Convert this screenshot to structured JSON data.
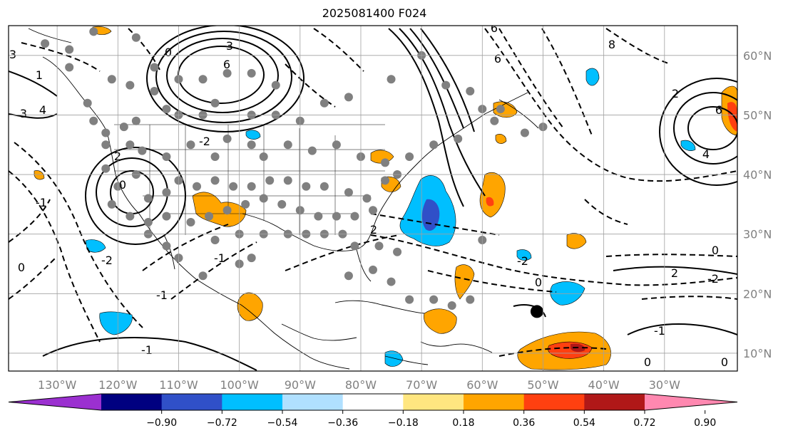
{
  "title": "2025081400 F024",
  "map": {
    "lon_range": [
      -138,
      -18
    ],
    "lat_range": [
      7,
      65
    ],
    "lon_ticks": [
      {
        "value": -130,
        "label": "130°W"
      },
      {
        "value": -120,
        "label": "120°W"
      },
      {
        "value": -110,
        "label": "110°W"
      },
      {
        "value": -100,
        "label": "100°W"
      },
      {
        "value": -90,
        "label": "90°W"
      },
      {
        "value": -80,
        "label": "80°W"
      },
      {
        "value": -70,
        "label": "70°W"
      },
      {
        "value": -60,
        "label": "60°W"
      },
      {
        "value": -50,
        "label": "50°W"
      },
      {
        "value": -40,
        "label": "40°W"
      },
      {
        "value": -30,
        "label": "30°W"
      }
    ],
    "lat_ticks": [
      {
        "value": 60,
        "label": "60°N"
      },
      {
        "value": 50,
        "label": "50°N"
      },
      {
        "value": 40,
        "label": "40°N"
      },
      {
        "value": 30,
        "label": "30°N"
      },
      {
        "value": 20,
        "label": "20°N"
      },
      {
        "value": 10,
        "label": "10°N"
      }
    ],
    "grid": true,
    "black_marker": {
      "lon": -51,
      "lat": 17
    }
  },
  "colorbar": {
    "colors": [
      "#9b30d0",
      "#000080",
      "#3050c8",
      "#00bfff",
      "#b0e0ff",
      "#ffffff",
      "#ffe680",
      "#ffa500",
      "#ff4010",
      "#b01818",
      "#ff88b0"
    ],
    "tick_labels": [
      "−0.90",
      "−0.72",
      "−0.54",
      "−0.36",
      "−0.18",
      "0.18",
      "0.36",
      "0.54",
      "0.72",
      "0.90"
    ]
  },
  "contour_labels": [
    "3",
    "6",
    "6",
    "6",
    "4",
    "3",
    "3",
    "-1",
    "-2",
    "2",
    "2",
    "0",
    "0",
    "0",
    "-2",
    "-2",
    "-2",
    "-1",
    "0",
    "0",
    "0",
    "4",
    "6",
    "-1",
    "0",
    "2",
    "2",
    "1",
    "8",
    "-1",
    "-1"
  ],
  "stations": [
    [
      -132,
      62
    ],
    [
      -128,
      61
    ],
    [
      -124,
      64
    ],
    [
      -117,
      63
    ],
    [
      -121,
      56
    ],
    [
      -118,
      55
    ],
    [
      -114,
      54
    ],
    [
      -114,
      58
    ],
    [
      -110,
      56
    ],
    [
      -106,
      56
    ],
    [
      -102,
      57
    ],
    [
      -98,
      57
    ],
    [
      -94,
      55
    ],
    [
      -128,
      58
    ],
    [
      -125,
      52
    ],
    [
      -124,
      49
    ],
    [
      -122,
      47
    ],
    [
      -119,
      48
    ],
    [
      -117,
      49
    ],
    [
      -112,
      51
    ],
    [
      -110,
      50
    ],
    [
      -106,
      50
    ],
    [
      -104,
      52
    ],
    [
      -98,
      50
    ],
    [
      -94,
      50
    ],
    [
      -90,
      49
    ],
    [
      -86,
      52
    ],
    [
      -82,
      53
    ],
    [
      -75,
      56
    ],
    [
      -70,
      60
    ],
    [
      -66,
      55
    ],
    [
      -62,
      54
    ],
    [
      -60,
      51
    ],
    [
      -58,
      49
    ],
    [
      -53,
      47
    ],
    [
      -50,
      48
    ],
    [
      -122,
      45
    ],
    [
      -118,
      45
    ],
    [
      -116,
      44
    ],
    [
      -112,
      43
    ],
    [
      -108,
      45
    ],
    [
      -104,
      43
    ],
    [
      -102,
      46
    ],
    [
      -98,
      45
    ],
    [
      -96,
      43
    ],
    [
      -92,
      45
    ],
    [
      -88,
      44
    ],
    [
      -84,
      45
    ],
    [
      -80,
      43
    ],
    [
      -76,
      42
    ],
    [
      -72,
      43
    ],
    [
      -68,
      45
    ],
    [
      -64,
      46
    ],
    [
      -122,
      41
    ],
    [
      -120,
      38
    ],
    [
      -117,
      40
    ],
    [
      -115,
      36
    ],
    [
      -112,
      37
    ],
    [
      -110,
      39
    ],
    [
      -107,
      38
    ],
    [
      -104,
      39
    ],
    [
      -101,
      38
    ],
    [
      -98,
      38
    ],
    [
      -95,
      39
    ],
    [
      -92,
      39
    ],
    [
      -89,
      38
    ],
    [
      -86,
      38
    ],
    [
      -82,
      37
    ],
    [
      -79,
      36
    ],
    [
      -76,
      39
    ],
    [
      -74,
      40
    ],
    [
      -121,
      35
    ],
    [
      -118,
      33
    ],
    [
      -115,
      32
    ],
    [
      -112,
      33
    ],
    [
      -108,
      32
    ],
    [
      -105,
      33
    ],
    [
      -102,
      34
    ],
    [
      -99,
      35
    ],
    [
      -96,
      36
    ],
    [
      -93,
      35
    ],
    [
      -90,
      34
    ],
    [
      -87,
      33
    ],
    [
      -84,
      33
    ],
    [
      -81,
      33
    ],
    [
      -78,
      34
    ],
    [
      -104,
      29
    ],
    [
      -100,
      30
    ],
    [
      -96,
      30
    ],
    [
      -92,
      30
    ],
    [
      -89,
      30
    ],
    [
      -86,
      30
    ],
    [
      -83,
      30
    ],
    [
      -81,
      28
    ],
    [
      -77,
      28
    ],
    [
      -74,
      27
    ],
    [
      -115,
      30
    ],
    [
      -112,
      28
    ],
    [
      -110,
      26
    ],
    [
      -106,
      23
    ],
    [
      -100,
      25
    ],
    [
      -98,
      26
    ],
    [
      -82,
      23
    ],
    [
      -78,
      24
    ],
    [
      -75,
      22
    ],
    [
      -72,
      19
    ],
    [
      -68,
      19
    ],
    [
      -62,
      19
    ],
    [
      -65,
      18
    ],
    [
      -60,
      29
    ],
    [
      -57,
      51
    ]
  ]
}
